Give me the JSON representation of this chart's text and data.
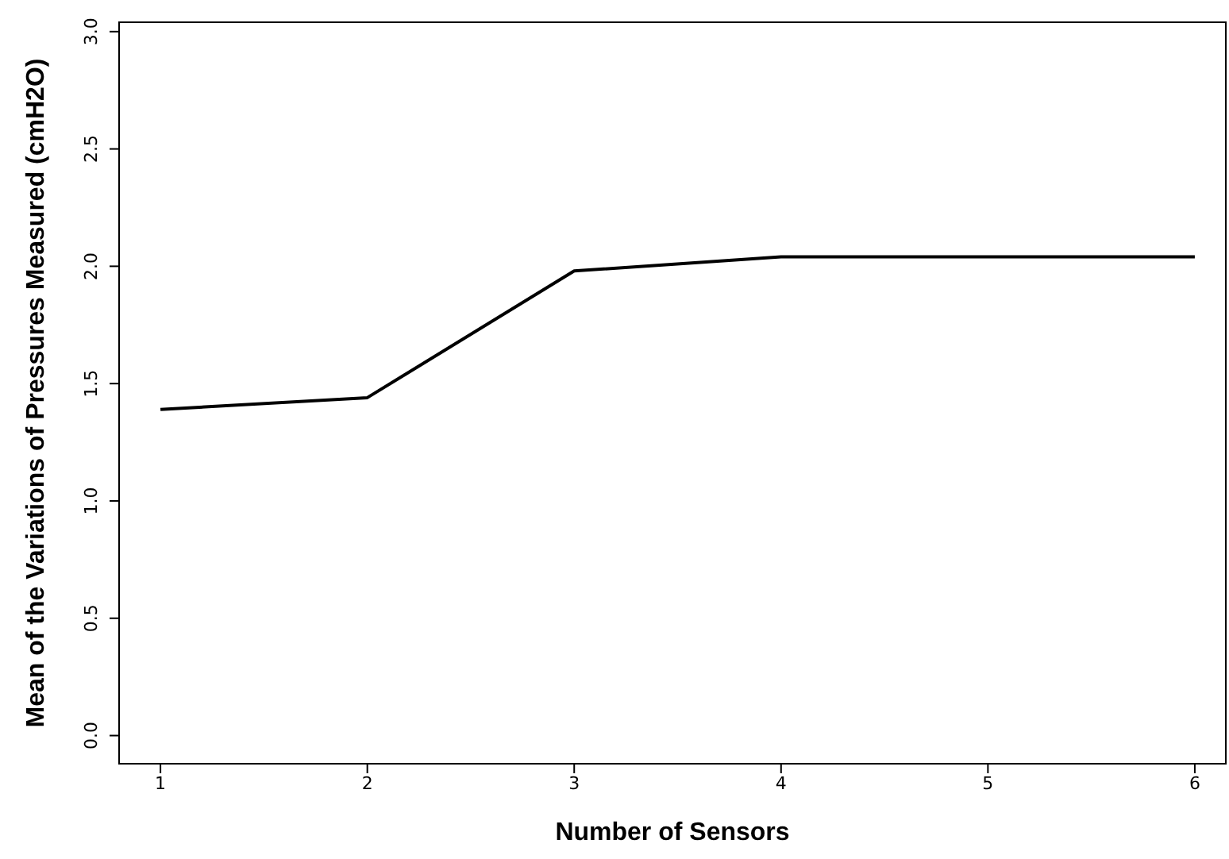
{
  "chart_data": {
    "type": "line",
    "xlabel": "Number of Sensors",
    "ylabel": "Mean of the Variations of Pressures Measured (cmH2O)",
    "x": [
      1,
      2,
      3,
      4,
      5,
      6
    ],
    "series": [
      {
        "color": "#000000",
        "values": [
          1.39,
          1.44,
          1.98,
          2.04,
          2.04,
          2.04
        ]
      }
    ],
    "xlim": [
      0.8,
      6.15
    ],
    "xticks": [
      1,
      2,
      3,
      4,
      5,
      6
    ],
    "ylim": [
      -0.12,
      3.04
    ],
    "yticks": [
      {
        "value": 0,
        "label": "0.0"
      },
      {
        "value": 0.5,
        "label": "0.5"
      },
      {
        "value": 1,
        "label": "1.0"
      },
      {
        "value": 1.5,
        "label": "1.5"
      },
      {
        "value": 2,
        "label": "2.0"
      },
      {
        "value": 2.5,
        "label": "2.5"
      },
      {
        "value": 3,
        "label": "3.0"
      }
    ],
    "grid": false,
    "legend": false,
    "marker": "none",
    "line_style": "solid"
  }
}
